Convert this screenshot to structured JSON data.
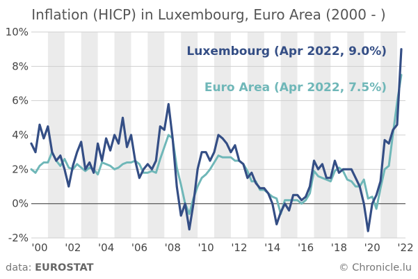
{
  "title": "Inflation (HICP) in Luxembourg, Euro Area (2000 - )",
  "source_prefix": "data: ",
  "source_name": "EUROSTAT",
  "credit": "© Chronicle.lu",
  "colors": {
    "luxembourg": "#344e85",
    "euro_area": "#6fb7b8",
    "band": "#ebebeb",
    "grid": "#cfcfcf",
    "zero": "#666666"
  },
  "chart_data": {
    "type": "line",
    "title": "Inflation (HICP) in Luxembourg, Euro Area (2000 - )",
    "xlabel": "",
    "ylabel": "",
    "xlim": [
      2000.0,
      2022.5
    ],
    "ylim": [
      -2,
      10
    ],
    "y_ticks": [
      -2,
      0,
      2,
      4,
      6,
      8,
      10
    ],
    "y_tick_labels": [
      "-2%",
      "0%",
      "2%",
      "4%",
      "6%",
      "8%",
      "10%"
    ],
    "x_ticks": [
      2000,
      2002,
      2004,
      2006,
      2008,
      2010,
      2012,
      2014,
      2016,
      2018,
      2020,
      2022
    ],
    "x_tick_labels": [
      "'00",
      "'02",
      "'04",
      "'06",
      "'08",
      "'10",
      "'12",
      "'14",
      "'16",
      "'18",
      "'20",
      "'22"
    ],
    "grid": "horizontal",
    "background": "alternating yearly bands",
    "series": [
      {
        "name": "Luxembourg (Apr 2022, 9.0%)",
        "color": "#344e85",
        "x": [
          2000.0,
          2000.25,
          2000.5,
          2000.75,
          2001.0,
          2001.25,
          2001.5,
          2001.75,
          2002.0,
          2002.25,
          2002.5,
          2002.75,
          2003.0,
          2003.25,
          2003.5,
          2003.75,
          2004.0,
          2004.25,
          2004.5,
          2004.75,
          2005.0,
          2005.25,
          2005.5,
          2005.75,
          2006.0,
          2006.25,
          2006.5,
          2006.75,
          2007.0,
          2007.25,
          2007.5,
          2007.75,
          2008.0,
          2008.25,
          2008.5,
          2008.75,
          2009.0,
          2009.25,
          2009.5,
          2009.75,
          2010.0,
          2010.25,
          2010.5,
          2010.75,
          2011.0,
          2011.25,
          2011.5,
          2011.75,
          2012.0,
          2012.25,
          2012.5,
          2012.75,
          2013.0,
          2013.25,
          2013.5,
          2013.75,
          2014.0,
          2014.25,
          2014.5,
          2014.75,
          2015.0,
          2015.25,
          2015.5,
          2015.75,
          2016.0,
          2016.25,
          2016.5,
          2016.75,
          2017.0,
          2017.25,
          2017.5,
          2017.75,
          2018.0,
          2018.25,
          2018.5,
          2018.75,
          2019.0,
          2019.25,
          2019.5,
          2019.75,
          2020.0,
          2020.25,
          2020.5,
          2020.75,
          2021.0,
          2021.25,
          2021.5,
          2021.75,
          2022.0,
          2022.25
        ],
        "values": [
          3.5,
          3.0,
          4.6,
          3.8,
          4.5,
          3.0,
          2.5,
          2.8,
          2.0,
          1.0,
          2.2,
          3.0,
          3.6,
          2.0,
          2.4,
          1.8,
          3.5,
          2.5,
          3.8,
          3.1,
          4.0,
          3.5,
          5.0,
          3.3,
          4.0,
          2.5,
          1.5,
          2.0,
          2.3,
          2.0,
          2.5,
          4.5,
          4.3,
          5.8,
          3.8,
          1.0,
          -0.7,
          0.0,
          -1.5,
          0.0,
          2.0,
          3.0,
          3.0,
          2.5,
          3.0,
          4.0,
          3.8,
          3.5,
          3.0,
          3.4,
          2.5,
          2.3,
          1.5,
          1.8,
          1.2,
          0.9,
          0.9,
          0.6,
          0.0,
          -1.2,
          -0.5,
          0.0,
          -0.4,
          0.5,
          0.5,
          0.2,
          0.4,
          1.0,
          2.5,
          2.0,
          2.3,
          1.5,
          1.5,
          2.5,
          1.8,
          2.0,
          2.0,
          2.0,
          1.5,
          1.0,
          0.0,
          -1.6,
          0.0,
          0.5,
          1.3,
          3.7,
          3.5,
          4.3,
          4.6,
          9.0
        ]
      },
      {
        "name": "Euro Area (Apr 2022, 7.5%)",
        "color": "#6fb7b8",
        "x": [
          2000.0,
          2000.25,
          2000.5,
          2000.75,
          2001.0,
          2001.25,
          2001.5,
          2001.75,
          2002.0,
          2002.25,
          2002.5,
          2002.75,
          2003.0,
          2003.25,
          2003.5,
          2003.75,
          2004.0,
          2004.25,
          2004.5,
          2004.75,
          2005.0,
          2005.25,
          2005.5,
          2005.75,
          2006.0,
          2006.25,
          2006.5,
          2006.75,
          2007.0,
          2007.25,
          2007.5,
          2007.75,
          2008.0,
          2008.25,
          2008.5,
          2008.75,
          2009.0,
          2009.25,
          2009.5,
          2009.75,
          2010.0,
          2010.25,
          2010.5,
          2010.75,
          2011.0,
          2011.25,
          2011.5,
          2011.75,
          2012.0,
          2012.25,
          2012.5,
          2012.75,
          2013.0,
          2013.25,
          2013.5,
          2013.75,
          2014.0,
          2014.25,
          2014.5,
          2014.75,
          2015.0,
          2015.25,
          2015.5,
          2015.75,
          2016.0,
          2016.25,
          2016.5,
          2016.75,
          2017.0,
          2017.25,
          2017.5,
          2017.75,
          2018.0,
          2018.25,
          2018.5,
          2018.75,
          2019.0,
          2019.25,
          2019.5,
          2019.75,
          2020.0,
          2020.25,
          2020.5,
          2020.75,
          2021.0,
          2021.25,
          2021.5,
          2021.75,
          2022.0,
          2022.25
        ],
        "values": [
          2.0,
          1.8,
          2.2,
          2.4,
          2.4,
          3.0,
          2.5,
          2.2,
          2.6,
          2.1,
          2.0,
          2.3,
          2.1,
          1.9,
          2.1,
          2.0,
          1.7,
          2.4,
          2.3,
          2.2,
          2.0,
          2.1,
          2.3,
          2.4,
          2.4,
          2.5,
          2.3,
          1.8,
          1.8,
          1.9,
          1.8,
          2.6,
          3.3,
          4.0,
          3.8,
          2.1,
          1.1,
          0.0,
          -0.6,
          0.3,
          1.0,
          1.5,
          1.7,
          2.0,
          2.4,
          2.8,
          2.7,
          2.7,
          2.7,
          2.5,
          2.5,
          2.3,
          1.9,
          1.3,
          1.3,
          0.8,
          0.8,
          0.6,
          0.4,
          0.3,
          -0.6,
          0.2,
          0.2,
          0.2,
          0.2,
          0.0,
          0.2,
          0.6,
          1.9,
          1.6,
          1.5,
          1.4,
          1.3,
          1.9,
          2.1,
          1.9,
          1.4,
          1.3,
          1.0,
          1.0,
          1.4,
          0.3,
          0.4,
          -0.3,
          0.9,
          2.0,
          2.2,
          4.1,
          5.9,
          7.5
        ]
      }
    ]
  }
}
